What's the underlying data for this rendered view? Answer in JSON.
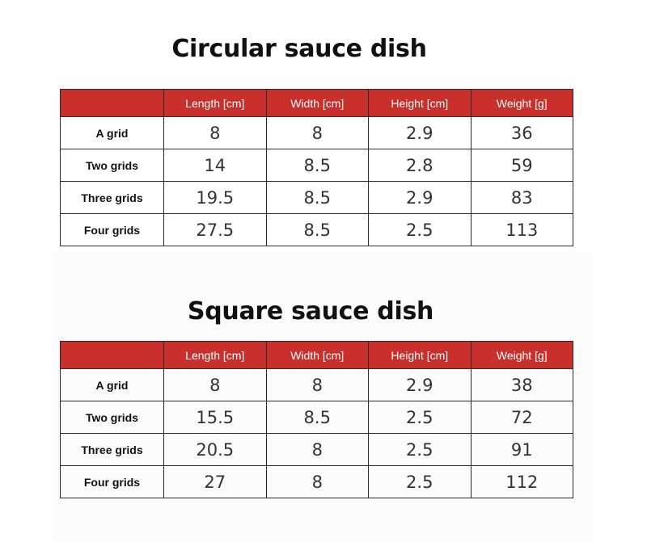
{
  "sections": [
    {
      "title": "Circular sauce dish",
      "headers": [
        "",
        "Length [cm]",
        "Width [cm]",
        "Height [cm]",
        "Weight [g]"
      ],
      "rows": [
        {
          "label": "A grid",
          "values": [
            "8",
            "8",
            "2.9",
            "36"
          ]
        },
        {
          "label": "Two grids",
          "values": [
            "14",
            "8.5",
            "2.8",
            "59"
          ]
        },
        {
          "label": "Three grids",
          "values": [
            "19.5",
            "8.5",
            "2.9",
            "83"
          ]
        },
        {
          "label": "Four grids",
          "values": [
            "27.5",
            "8.5",
            "2.5",
            "113"
          ]
        }
      ]
    },
    {
      "title": "Square sauce dish",
      "headers": [
        "",
        "Length [cm]",
        "Width [cm]",
        "Height [cm]",
        "Weight [g]"
      ],
      "rows": [
        {
          "label": "A grid",
          "values": [
            "8",
            "8",
            "2.9",
            "38"
          ]
        },
        {
          "label": "Two grids",
          "values": [
            "15.5",
            "8.5",
            "2.5",
            "72"
          ]
        },
        {
          "label": "Three grids",
          "values": [
            "20.5",
            "8",
            "2.5",
            "91"
          ]
        },
        {
          "label": "Four grids",
          "values": [
            "27",
            "8",
            "2.5",
            "112"
          ]
        }
      ]
    }
  ],
  "colors": {
    "header_bg": "#c9302c",
    "header_text": "#ffffff",
    "border": "#2b2b2b"
  }
}
